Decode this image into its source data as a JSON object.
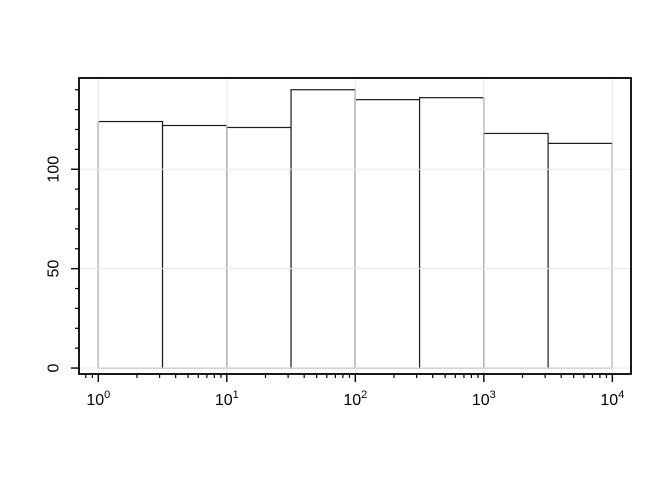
{
  "figure": {
    "background": "#ffffff"
  },
  "chart_data": {
    "type": "bar",
    "subtype": "histogram",
    "title": "",
    "xlabel": "",
    "ylabel": "",
    "x_scale": "log10",
    "bin_edges_log10": [
      0,
      0.5,
      1,
      1.5,
      2,
      2.5,
      3,
      3.5,
      4
    ],
    "counts": [
      124,
      122,
      121,
      140,
      135,
      136,
      118,
      113
    ],
    "x_axis": {
      "major_tick_exponents": [
        0,
        1,
        2,
        3,
        4
      ],
      "major_tick_labels": [
        {
          "base": "10",
          "sup": "0"
        },
        {
          "base": "10",
          "sup": "1"
        },
        {
          "base": "10",
          "sup": "2"
        },
        {
          "base": "10",
          "sup": "3"
        },
        {
          "base": "10",
          "sup": "4"
        }
      ],
      "minor_tick_mantissas": [
        2,
        3,
        4,
        5,
        6,
        7,
        8,
        9
      ],
      "minor_decade_start": -1,
      "minor_decade_end": 3,
      "range_log10": [
        -0.15,
        4.145
      ]
    },
    "y_axis": {
      "major_ticks": [
        0,
        50,
        100
      ],
      "major_tick_labels": [
        "0",
        "50",
        "100"
      ],
      "minor_tick_step": 10,
      "minor_tick_max": 140,
      "range": [
        -3,
        145.9
      ]
    },
    "ylim": [
      0,
      140
    ],
    "grid": {
      "show": true,
      "color": "#e7e7e7",
      "x_gridline_exponents": [
        0,
        1,
        2,
        3,
        4
      ],
      "y_gridline_values": [
        0,
        50,
        100
      ]
    },
    "legend": null,
    "colors": {
      "bar_fill": "#ffffff",
      "bar_stroke": "#1c1c1c",
      "axis": "#000000",
      "text": "#000000"
    }
  }
}
